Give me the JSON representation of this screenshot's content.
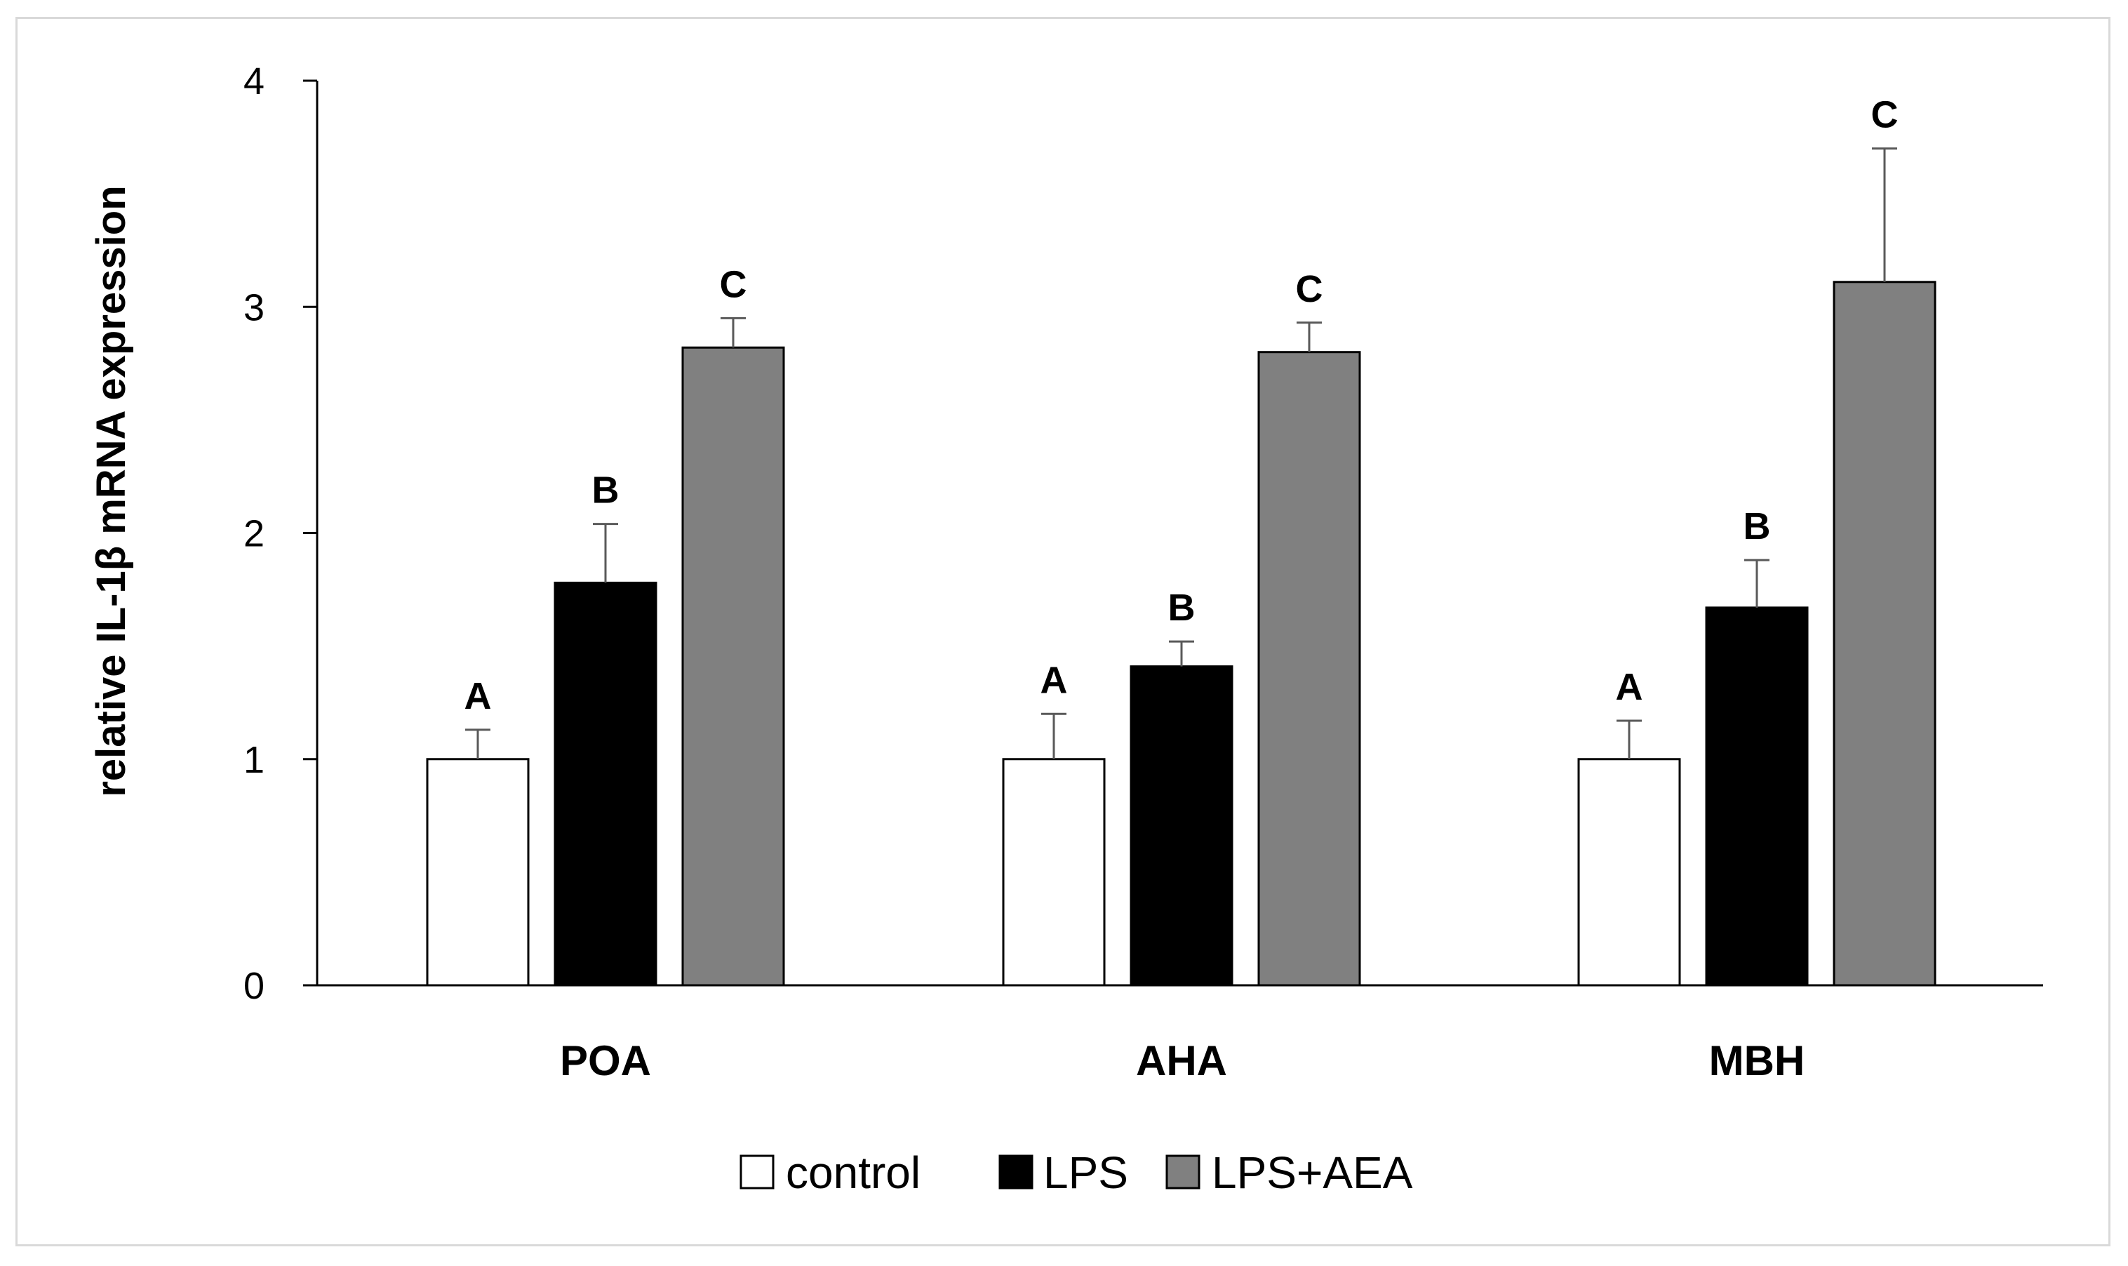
{
  "chart_data": {
    "type": "bar",
    "title": "",
    "xlabel": "",
    "ylabel": "relative IL-1β mRNA expression",
    "ylim": [
      0,
      4
    ],
    "yticks": [
      0,
      1,
      2,
      3,
      4
    ],
    "grid": false,
    "legend_position": "bottom-center",
    "categories": [
      "POA",
      "AHA",
      "MBH"
    ],
    "series": [
      {
        "name": "control",
        "color": "#ffffff",
        "values": [
          1.0,
          1.0,
          1.0
        ],
        "errors": [
          0.13,
          0.2,
          0.17
        ],
        "labels": [
          "A",
          "A",
          "A"
        ]
      },
      {
        "name": "LPS",
        "color": "#000000",
        "values": [
          1.78,
          1.41,
          1.67
        ],
        "errors": [
          0.26,
          0.11,
          0.21
        ],
        "labels": [
          "B",
          "B",
          "B"
        ]
      },
      {
        "name": "LPS+AEA",
        "color": "#808080",
        "values": [
          2.82,
          2.8,
          3.11
        ],
        "errors": [
          0.13,
          0.13,
          0.59
        ],
        "labels": [
          "C",
          "C",
          "C"
        ]
      }
    ]
  }
}
